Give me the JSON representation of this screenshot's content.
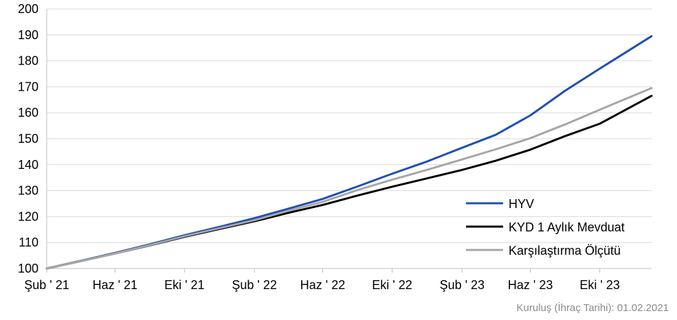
{
  "footnote": "Kuruluş (İhraç Tarihi): 01.02.2021",
  "chart_data": {
    "type": "line",
    "title": "",
    "xlabel": "",
    "ylabel": "",
    "ylim": [
      100,
      200
    ],
    "yticks": [
      100,
      110,
      120,
      130,
      140,
      150,
      160,
      170,
      180,
      190,
      200
    ],
    "xlim": [
      "2021-02-01",
      "2023-12-31"
    ],
    "xticks": [
      {
        "label": "Şub ' 21",
        "date": "2021-02-01"
      },
      {
        "label": "Haz ' 21",
        "date": "2021-06-01"
      },
      {
        "label": "Eki ' 21",
        "date": "2021-10-01"
      },
      {
        "label": "Şub ' 22",
        "date": "2022-02-01"
      },
      {
        "label": "Haz ' 22",
        "date": "2022-06-01"
      },
      {
        "label": "Eki ' 22",
        "date": "2022-10-01"
      },
      {
        "label": "Şub ' 23",
        "date": "2023-02-01"
      },
      {
        "label": "Haz ' 23",
        "date": "2023-06-01"
      },
      {
        "label": "Eki ' 23",
        "date": "2023-10-01"
      }
    ],
    "grid": "horizontal",
    "legend_position": "bottom-right",
    "x": [
      "2021-02-01",
      "2021-04-01",
      "2021-06-01",
      "2021-08-01",
      "2021-10-01",
      "2021-12-01",
      "2022-02-01",
      "2022-04-01",
      "2022-06-01",
      "2022-08-01",
      "2022-10-01",
      "2022-12-01",
      "2023-02-01",
      "2023-04-01",
      "2023-06-01",
      "2023-08-01",
      "2023-10-01",
      "2023-12-31"
    ],
    "series": [
      {
        "name": "HYV",
        "color": "#1f4fb4",
        "values": [
          100,
          102.9,
          106.0,
          109.3,
          112.8,
          116.0,
          119.4,
          123.0,
          126.8,
          131.6,
          136.5,
          141.2,
          146.5,
          151.5,
          159.0,
          168.5,
          177.0,
          189.5
        ]
      },
      {
        "name": "KYD 1 Aylık Mevduat",
        "color": "#000000",
        "values": [
          100,
          102.8,
          105.8,
          108.9,
          112.2,
          115.2,
          118.2,
          121.4,
          124.5,
          128.1,
          131.5,
          134.7,
          138.0,
          141.5,
          145.8,
          151.0,
          155.8,
          166.5
        ]
      },
      {
        "name": "Karşılaştırma Ölçütü",
        "color": "#a6a6a6",
        "values": [
          100,
          102.8,
          105.8,
          109.0,
          112.4,
          115.5,
          118.6,
          122.2,
          125.7,
          130.2,
          134.2,
          138.0,
          142.0,
          145.9,
          150.2,
          155.5,
          161.2,
          169.5
        ]
      }
    ]
  }
}
